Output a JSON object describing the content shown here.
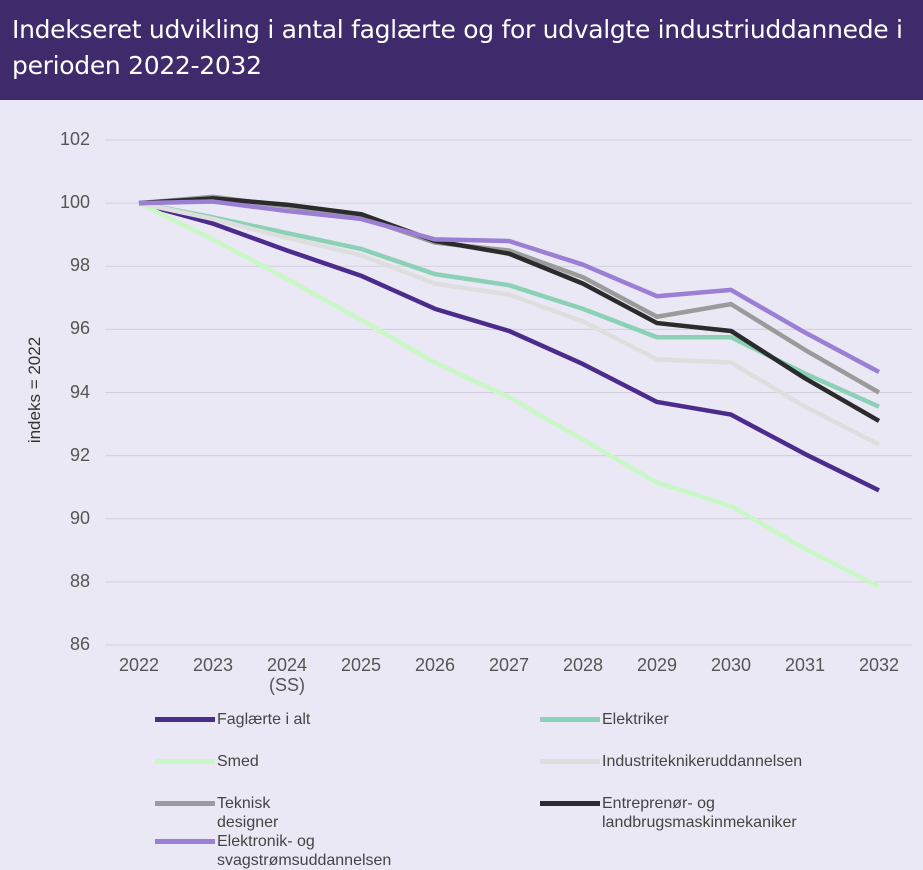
{
  "chart_data": {
    "type": "line",
    "title": "Indekseret udvikling i antal faglærte og for udvalgte industriuddannede i perioden 2022-2032",
    "ylabel": "indeks = 2022",
    "categories": [
      "2022",
      "2023",
      "2024\n(SS)",
      "2025",
      "2026",
      "2027",
      "2028",
      "2029",
      "2030",
      "2031",
      "2032"
    ],
    "ylim": [
      86,
      102
    ],
    "yticks": [
      86,
      88,
      90,
      92,
      94,
      96,
      98,
      100,
      102
    ],
    "grid": true,
    "series": [
      {
        "name": "Faglærte i alt",
        "color": "#4b2c8c",
        "values": [
          100,
          99.35,
          98.5,
          97.7,
          96.65,
          95.95,
          94.9,
          93.7,
          93.3,
          92.05,
          90.9
        ]
      },
      {
        "name": "Elektriker",
        "color": "#8ad1b5",
        "values": [
          100,
          99.55,
          99.05,
          98.55,
          97.75,
          97.4,
          96.65,
          95.75,
          95.75,
          94.6,
          93.55
        ]
      },
      {
        "name": "Smed",
        "color": "#c9f7c6",
        "values": [
          100,
          98.85,
          97.6,
          96.3,
          94.95,
          93.85,
          92.5,
          91.15,
          90.4,
          89.05,
          87.85
        ]
      },
      {
        "name": "Industriteknikeruddannelsen",
        "color": "#dedede",
        "values": [
          100,
          99.5,
          98.9,
          98.35,
          97.45,
          97.1,
          96.25,
          95.05,
          94.95,
          93.55,
          92.35
        ]
      },
      {
        "name": "Teknisk designer",
        "color": "#9b9b9b",
        "values": [
          100,
          100.2,
          99.9,
          99.55,
          98.75,
          98.5,
          97.65,
          96.4,
          96.8,
          95.35,
          94.0
        ]
      },
      {
        "name": "Entreprenør- og landbrugsmaskinmekaniker",
        "color": "#2b2b2b",
        "values": [
          100,
          100.15,
          99.95,
          99.65,
          98.8,
          98.4,
          97.45,
          96.2,
          95.95,
          94.45,
          93.1
        ]
      },
      {
        "name": "Elektronik- og svagstrømsuddannelsen",
        "color": "#9b7fd4",
        "values": [
          100,
          100.05,
          99.75,
          99.5,
          98.85,
          98.8,
          98.05,
          97.05,
          97.25,
          95.9,
          94.65
        ]
      }
    ]
  }
}
